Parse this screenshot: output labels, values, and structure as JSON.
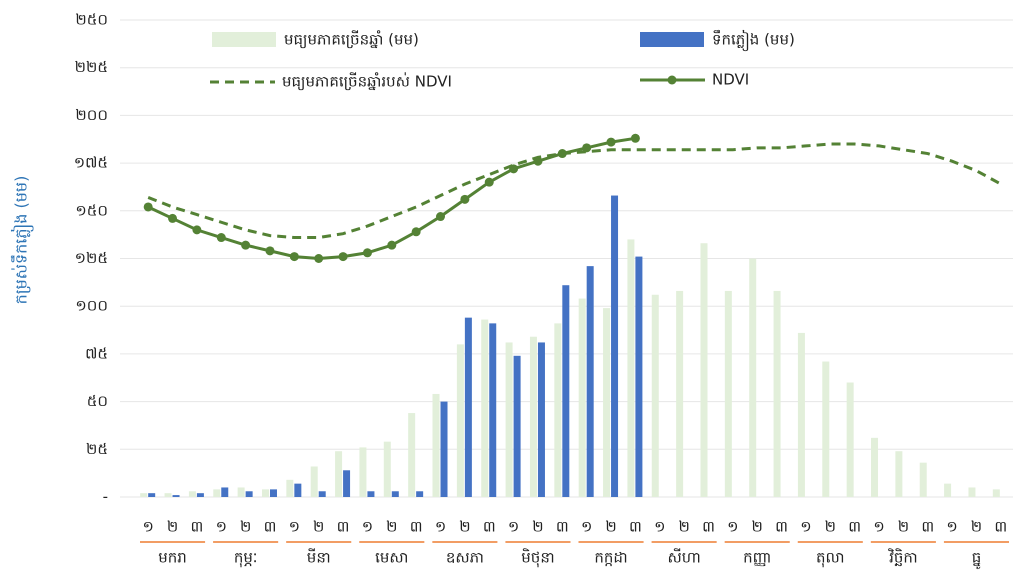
{
  "chart_data": {
    "type": "combo",
    "y_label": "កម្រស់ទឹកភ្លៀង (មម)",
    "categories": [
      "១",
      "២",
      "៣",
      "១",
      "២",
      "៣",
      "១",
      "២",
      "៣",
      "១",
      "២",
      "៣",
      "១",
      "២",
      "៣",
      "១",
      "២",
      "៣",
      "១",
      "២",
      "៣",
      "១",
      "២",
      "៣",
      "១",
      "២",
      "៣",
      "១",
      "២",
      "៣",
      "១",
      "២",
      "៣",
      "១",
      "២",
      "៣"
    ],
    "months": [
      "មករា",
      "កុម្ភៈ",
      "មីនា",
      "មេសា",
      "ឧសភា",
      "មិថុនា",
      "កក្កដា",
      "សីហា",
      "កញ្ញា",
      "តុលា",
      "វិច្ឆិកា",
      "ធ្នូ"
    ],
    "ylim": [
      0,
      250
    ],
    "yticks": [
      {
        "value": 0,
        "label": "-"
      },
      {
        "value": 25,
        "label": "២៥"
      },
      {
        "value": 50,
        "label": "៥០"
      },
      {
        "value": 75,
        "label": "៧៥"
      },
      {
        "value": 100,
        "label": "១០០"
      },
      {
        "value": 125,
        "label": "១២៥"
      },
      {
        "value": 150,
        "label": "១៥០"
      },
      {
        "value": 175,
        "label": "១៧៥"
      },
      {
        "value": 200,
        "label": "២០០"
      },
      {
        "value": 225,
        "label": "២២៥"
      },
      {
        "value": 250,
        "label": "២៥០"
      }
    ],
    "grid": true,
    "series": [
      {
        "name": "មធ្យមភាគច្រើនឆ្នាំ (មម)",
        "type": "bar",
        "color": "#e2efda",
        "values": [
          2,
          2,
          3,
          4,
          5,
          4,
          9,
          16,
          24,
          26,
          29,
          44,
          54,
          80,
          93,
          81,
          84,
          91,
          104,
          99,
          135,
          106,
          108,
          133,
          108,
          125,
          108,
          86,
          71,
          60,
          31,
          24,
          18,
          7,
          5,
          4
        ]
      },
      {
        "name": "ទឹកភ្លៀង (មម)",
        "type": "bar",
        "color": "#4472c4",
        "values": [
          2,
          1,
          2,
          5,
          3,
          4,
          7,
          3,
          14,
          3,
          3,
          3,
          50,
          94,
          91,
          74,
          81,
          111,
          121,
          158,
          126,
          null,
          null,
          null,
          null,
          null,
          null,
          null,
          null,
          null,
          null,
          null,
          null,
          null,
          null,
          null
        ]
      },
      {
        "name": "មធ្យមភាគច្រើនឆ្នាំរបស់ NDVI",
        "type": "line",
        "dashed": true,
        "markers": false,
        "color": "#548235",
        "values": [
          157,
          152,
          148,
          144,
          140,
          137,
          136,
          136,
          138,
          142,
          147,
          152,
          158,
          164,
          169,
          174,
          178,
          180,
          181,
          182,
          182,
          182,
          182,
          182,
          182,
          183,
          183,
          184,
          185,
          185,
          184,
          182,
          180,
          176,
          171,
          164
        ]
      },
      {
        "name": "NDVI",
        "type": "line",
        "dashed": false,
        "markers": true,
        "color": "#548235",
        "values": [
          152,
          146,
          140,
          136,
          132,
          129,
          126,
          125,
          126,
          128,
          132,
          139,
          147,
          156,
          165,
          172,
          176,
          180,
          183,
          186,
          188,
          null,
          null,
          null,
          null,
          null,
          null,
          null,
          null,
          null,
          null,
          null,
          null,
          null,
          null,
          null
        ]
      }
    ]
  }
}
